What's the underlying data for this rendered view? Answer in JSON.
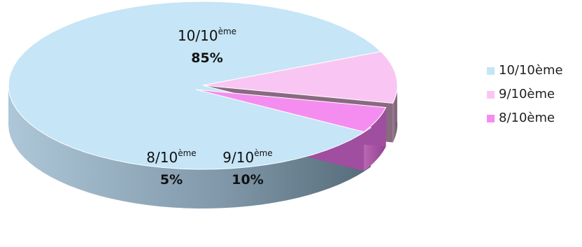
{
  "chart_data": {
    "type": "pie",
    "style": "3d-exploded",
    "slices": [
      {
        "name": "10/10ème",
        "value": 85,
        "label_main": "10/10",
        "label_sup": "ème",
        "label_pct": "85%",
        "color": "#c6e5f7",
        "side_color": "#8fa9ba"
      },
      {
        "name": "9/10ème",
        "value": 10,
        "label_main": "9/10",
        "label_sup": "ème",
        "label_pct": "10%",
        "color": "#f9c6f3",
        "side_color": "#8a6a80"
      },
      {
        "name": "8/10ème",
        "value": 5,
        "label_main": "8/10",
        "label_sup": "ème",
        "label_pct": "5%",
        "color": "#f58df0",
        "side_color": "#a04ea0"
      }
    ],
    "legend": {
      "position": "right",
      "items": [
        {
          "label": "10/10ème",
          "color": "#c6e5f7"
        },
        {
          "label": "9/10ème",
          "color": "#f9c6f3"
        },
        {
          "label": "8/10ème",
          "color": "#f58df0"
        }
      ]
    }
  }
}
